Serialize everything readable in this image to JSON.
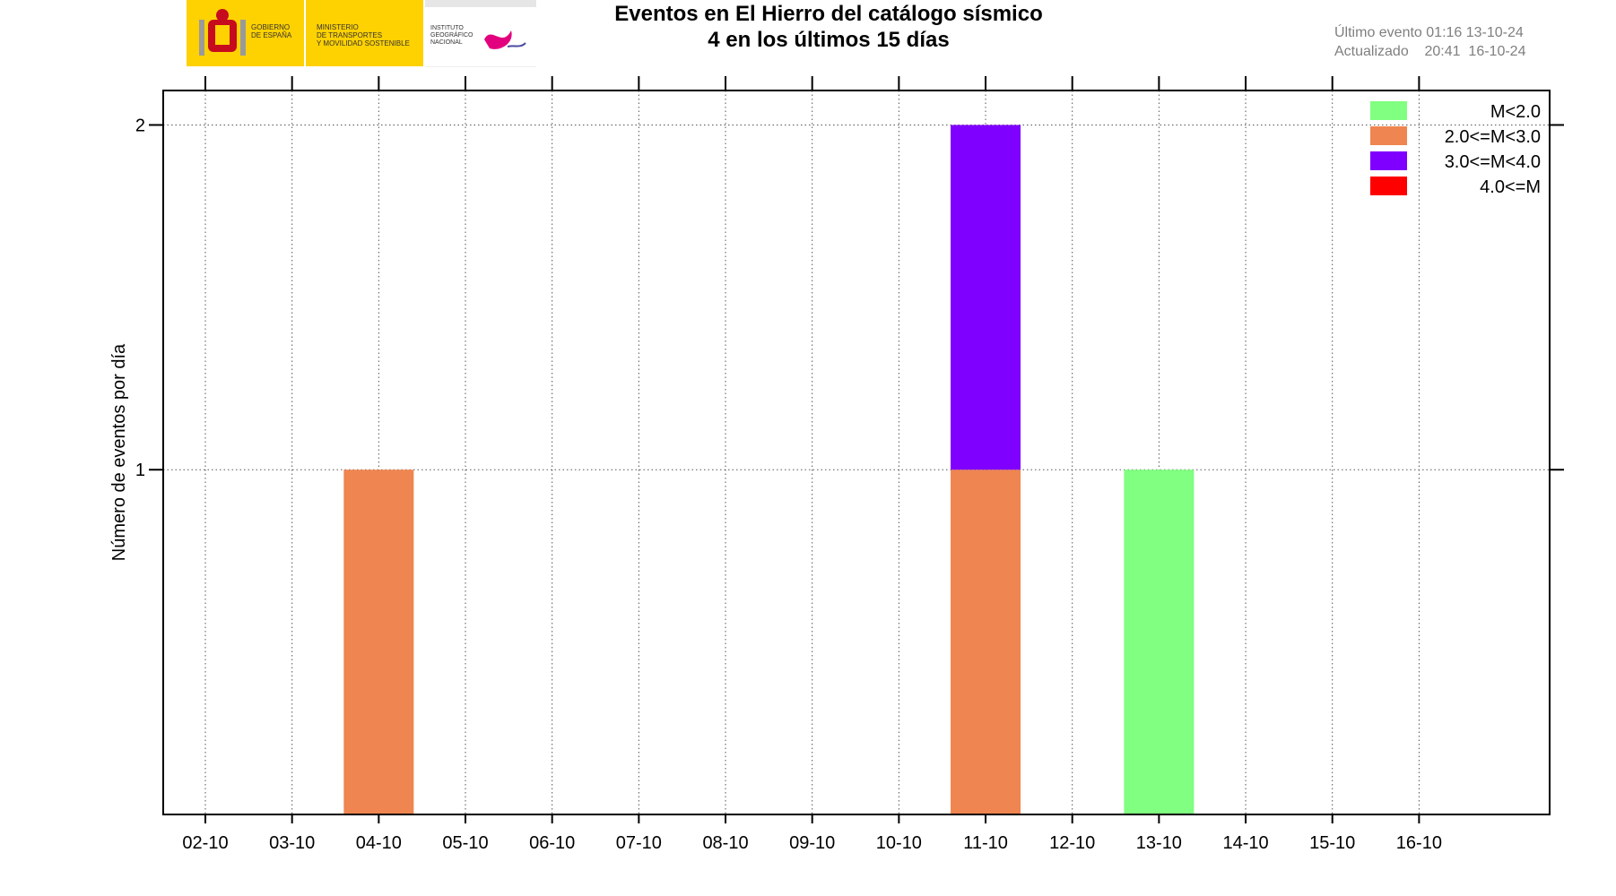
{
  "header": {
    "logo": {
      "gobierno_text": "GOBIERNO\nDE ESPAÑA",
      "ministerio_text": "MINISTERIO\nDE TRANSPORTES\nY MOVILIDAD SOSTENIBLE",
      "instituto_text": "INSTITUTO\nGEOGRÁFICO\nNACIONAL",
      "brand_yellow": "#fed100",
      "brand_red": "#c60b1e"
    },
    "ultimo_evento": "Último evento 01:16 13-10-24",
    "actualizado": "Actualizado    20:41  16-10-24"
  },
  "chart_data": {
    "type": "bar",
    "stacked": true,
    "title": "Eventos en El Hierro del catálogo sísmico",
    "subtitle": "4 en los últimos 15 días",
    "xlabel": "",
    "ylabel": "Número de eventos por día",
    "categories": [
      "02-10",
      "03-10",
      "04-10",
      "05-10",
      "06-10",
      "07-10",
      "08-10",
      "09-10",
      "10-10",
      "11-10",
      "12-10",
      "13-10",
      "14-10",
      "15-10",
      "16-10"
    ],
    "y_ticks": [
      1,
      2
    ],
    "ylim": [
      0,
      2.1
    ],
    "grid": true,
    "legend_position": "top-right",
    "series": [
      {
        "name": "M<2.0",
        "color": "#80ff80",
        "values": [
          0,
          0,
          0,
          0,
          0,
          0,
          0,
          0,
          0,
          0,
          0,
          1,
          0,
          0,
          0
        ]
      },
      {
        "name": "2.0<=M<3.0",
        "color": "#ef8550",
        "values": [
          0,
          0,
          1,
          0,
          0,
          0,
          0,
          0,
          0,
          1,
          0,
          0,
          0,
          0,
          0
        ]
      },
      {
        "name": "3.0<=M<4.0",
        "color": "#8000ff",
        "values": [
          0,
          0,
          0,
          0,
          0,
          0,
          0,
          0,
          0,
          1,
          0,
          0,
          0,
          0,
          0
        ]
      },
      {
        "name": "4.0<=M",
        "color": "#ff0000",
        "values": [
          0,
          0,
          0,
          0,
          0,
          0,
          0,
          0,
          0,
          0,
          0,
          0,
          0,
          0,
          0
        ]
      }
    ]
  }
}
